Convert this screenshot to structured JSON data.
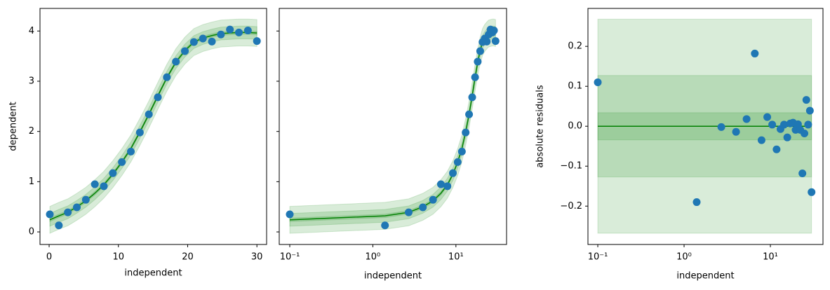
{
  "chart_data": [
    {
      "type": "scatter",
      "xlabel": "independent",
      "ylabel": "dependent",
      "xscale": "linear",
      "x": [
        0.1,
        1.4,
        2.7,
        4.0,
        5.3,
        6.6,
        7.9,
        9.2,
        10.5,
        11.8,
        13.1,
        14.4,
        15.7,
        17.0,
        18.3,
        19.6,
        20.9,
        22.2,
        23.5,
        24.8,
        26.1,
        27.4,
        28.7,
        30.0
      ],
      "points": {
        "color": "#1f77b4",
        "values": [
          0.35,
          0.13,
          0.39,
          0.49,
          0.64,
          0.95,
          0.91,
          1.17,
          1.39,
          1.6,
          1.98,
          2.34,
          2.68,
          3.08,
          3.39,
          3.6,
          3.78,
          3.85,
          3.79,
          3.93,
          4.03,
          3.97,
          4.01,
          3.8
        ]
      },
      "fit": {
        "color": "#008000",
        "values": [
          0.24,
          0.32,
          0.39,
          0.5,
          0.62,
          0.77,
          0.94,
          1.15,
          1.39,
          1.66,
          1.99,
          2.34,
          2.71,
          3.07,
          3.38,
          3.61,
          3.78,
          3.86,
          3.91,
          3.95,
          3.96,
          3.97,
          3.97,
          3.96
        ]
      },
      "bands": [
        0.268,
        0.127,
        0.034
      ],
      "band_color": "#008000",
      "xlim": [
        -1.32,
        31.4
      ],
      "xticks": [
        0,
        10,
        20,
        30
      ],
      "ylim": [
        -0.25,
        4.45
      ],
      "yticks": [
        0,
        1,
        2,
        3,
        4
      ]
    },
    {
      "type": "scatter",
      "xlabel": "independent",
      "xscale": "log",
      "sharey": true,
      "x": [
        0.1,
        1.4,
        2.7,
        4.0,
        5.3,
        6.6,
        7.9,
        9.2,
        10.5,
        11.8,
        13.1,
        14.4,
        15.7,
        17.0,
        18.3,
        19.6,
        20.9,
        22.2,
        23.5,
        24.8,
        26.1,
        27.4,
        28.7,
        30.0
      ],
      "points": {
        "color": "#1f77b4",
        "values": [
          0.35,
          0.13,
          0.39,
          0.49,
          0.64,
          0.95,
          0.91,
          1.17,
          1.39,
          1.6,
          1.98,
          2.34,
          2.68,
          3.08,
          3.39,
          3.6,
          3.78,
          3.85,
          3.79,
          3.93,
          4.03,
          3.97,
          4.01,
          3.8
        ]
      },
      "fit": {
        "color": "#008000",
        "values": [
          0.24,
          0.32,
          0.39,
          0.5,
          0.62,
          0.77,
          0.94,
          1.15,
          1.39,
          1.66,
          1.99,
          2.34,
          2.71,
          3.07,
          3.38,
          3.61,
          3.78,
          3.86,
          3.91,
          3.95,
          3.96,
          3.97,
          3.97,
          3.96
        ]
      },
      "bands": [
        0.268,
        0.127,
        0.034
      ],
      "band_color": "#008000",
      "xlim": [
        0.0747,
        40.7
      ],
      "xticks": [
        {
          "value": 0.1,
          "label": "10⁻¹"
        },
        {
          "value": 1,
          "label": "10⁰"
        },
        {
          "value": 10,
          "label": "10¹"
        }
      ],
      "ylim": [
        -0.25,
        4.45
      ]
    },
    {
      "type": "scatter",
      "xlabel": "independent",
      "ylabel": "absolute residuals",
      "xscale": "log",
      "x": [
        0.1,
        1.4,
        2.7,
        4.0,
        5.3,
        6.6,
        7.9,
        9.2,
        10.5,
        11.8,
        13.1,
        14.4,
        15.7,
        17.0,
        18.3,
        19.6,
        20.9,
        22.2,
        23.5,
        24.8,
        26.1,
        27.4,
        28.7,
        30.0
      ],
      "points": {
        "color": "#1f77b4",
        "values": [
          0.11,
          -0.19,
          -0.002,
          -0.014,
          0.018,
          0.182,
          -0.035,
          0.023,
          0.004,
          -0.058,
          -0.007,
          0.004,
          -0.028,
          0.007,
          0.009,
          -0.009,
          0.005,
          -0.009,
          -0.118,
          -0.018,
          0.066,
          0.004,
          0.039,
          -0.165
        ]
      },
      "fit": {
        "color": "#008000",
        "values": [
          0,
          0,
          0,
          0,
          0,
          0,
          0,
          0,
          0,
          0,
          0,
          0,
          0,
          0,
          0,
          0,
          0,
          0,
          0,
          0,
          0,
          0,
          0,
          0
        ]
      },
      "bands": [
        0.268,
        0.127,
        0.034
      ],
      "band_color": "#008000",
      "xlim": [
        0.0769,
        40.7
      ],
      "xticks": [
        {
          "value": 0.1,
          "label": "10⁻¹"
        },
        {
          "value": 1,
          "label": "10⁰"
        },
        {
          "value": 10,
          "label": "10¹"
        }
      ],
      "ylim": [
        -0.296,
        0.295
      ],
      "yticks": [
        {
          "value": -0.2,
          "label": "−0.2"
        },
        {
          "value": -0.1,
          "label": "−0.1"
        },
        {
          "value": 0,
          "label": "0.0"
        },
        0.1,
        0.2
      ]
    }
  ]
}
